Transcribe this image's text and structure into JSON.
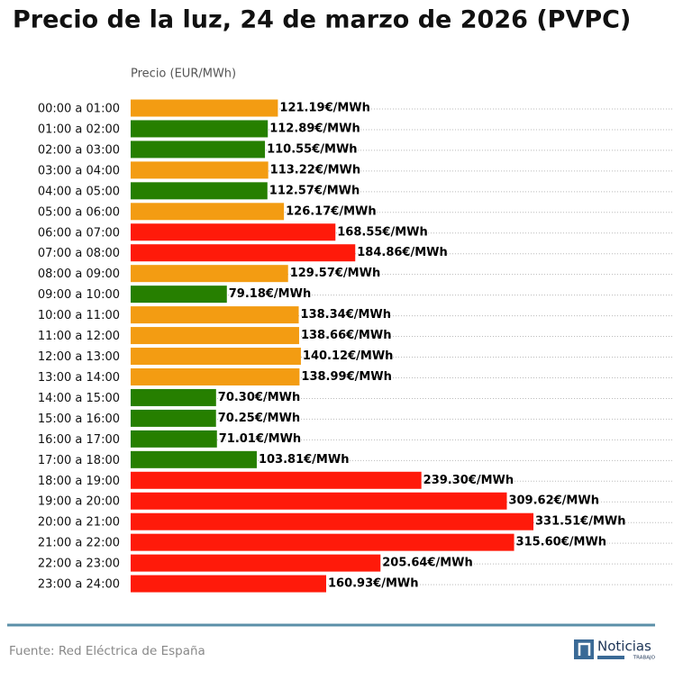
{
  "chart_data": {
    "type": "barh",
    "title": "Precio de la luz, 24 de marzo de 2026 (PVPC)",
    "xlabel": "Precio (EUR/MWh)",
    "categories": [
      "00:00 a 01:00",
      "01:00 a 02:00",
      "02:00 a 03:00",
      "03:00 a 04:00",
      "04:00 a 05:00",
      "05:00 a 06:00",
      "06:00 a 07:00",
      "07:00 a 08:00",
      "08:00 a 09:00",
      "09:00 a 10:00",
      "10:00 a 11:00",
      "11:00 a 12:00",
      "12:00 a 13:00",
      "13:00 a 14:00",
      "14:00 a 15:00",
      "15:00 a 16:00",
      "16:00 a 17:00",
      "17:00 a 18:00",
      "18:00 a 19:00",
      "19:00 a 20:00",
      "20:00 a 21:00",
      "21:00 a 22:00",
      "22:00 a 23:00",
      "23:00 a 24:00"
    ],
    "values": [
      121.19,
      112.89,
      110.55,
      113.22,
      112.57,
      126.17,
      168.55,
      184.86,
      129.57,
      79.18,
      138.34,
      138.66,
      140.12,
      138.99,
      70.3,
      70.25,
      71.01,
      103.81,
      239.3,
      309.62,
      331.51,
      315.6,
      205.64,
      160.93
    ],
    "value_labels": [
      "121.19€/MWh",
      "112.89€/MWh",
      "110.55€/MWh",
      "113.22€/MWh",
      "112.57€/MWh",
      "126.17€/MWh",
      "168.55€/MWh",
      "184.86€/MWh",
      "129.57€/MWh",
      "79.18€/MWh",
      "138.34€/MWh",
      "138.66€/MWh",
      "140.12€/MWh",
      "138.99€/MWh",
      "70.30€/MWh",
      "70.25€/MWh",
      "71.01€/MWh",
      "103.81€/MWh",
      "239.30€/MWh",
      "309.62€/MWh",
      "331.51€/MWh",
      "315.60€/MWh",
      "205.64€/MWh",
      "160.93€/MWh"
    ],
    "colors": [
      "#f39c12",
      "#267f00",
      "#267f00",
      "#f39c12",
      "#267f00",
      "#f39c12",
      "#ff1a0a",
      "#ff1a0a",
      "#f39c12",
      "#267f00",
      "#f39c12",
      "#f39c12",
      "#f39c12",
      "#f39c12",
      "#267f00",
      "#267f00",
      "#267f00",
      "#267f00",
      "#ff1a0a",
      "#ff1a0a",
      "#ff1a0a",
      "#ff1a0a",
      "#ff1a0a",
      "#ff1a0a"
    ],
    "source": "Fuente: Red Eléctrica de España",
    "logo": {
      "name": "Noticias",
      "tagline": "TRABAJO"
    }
  }
}
